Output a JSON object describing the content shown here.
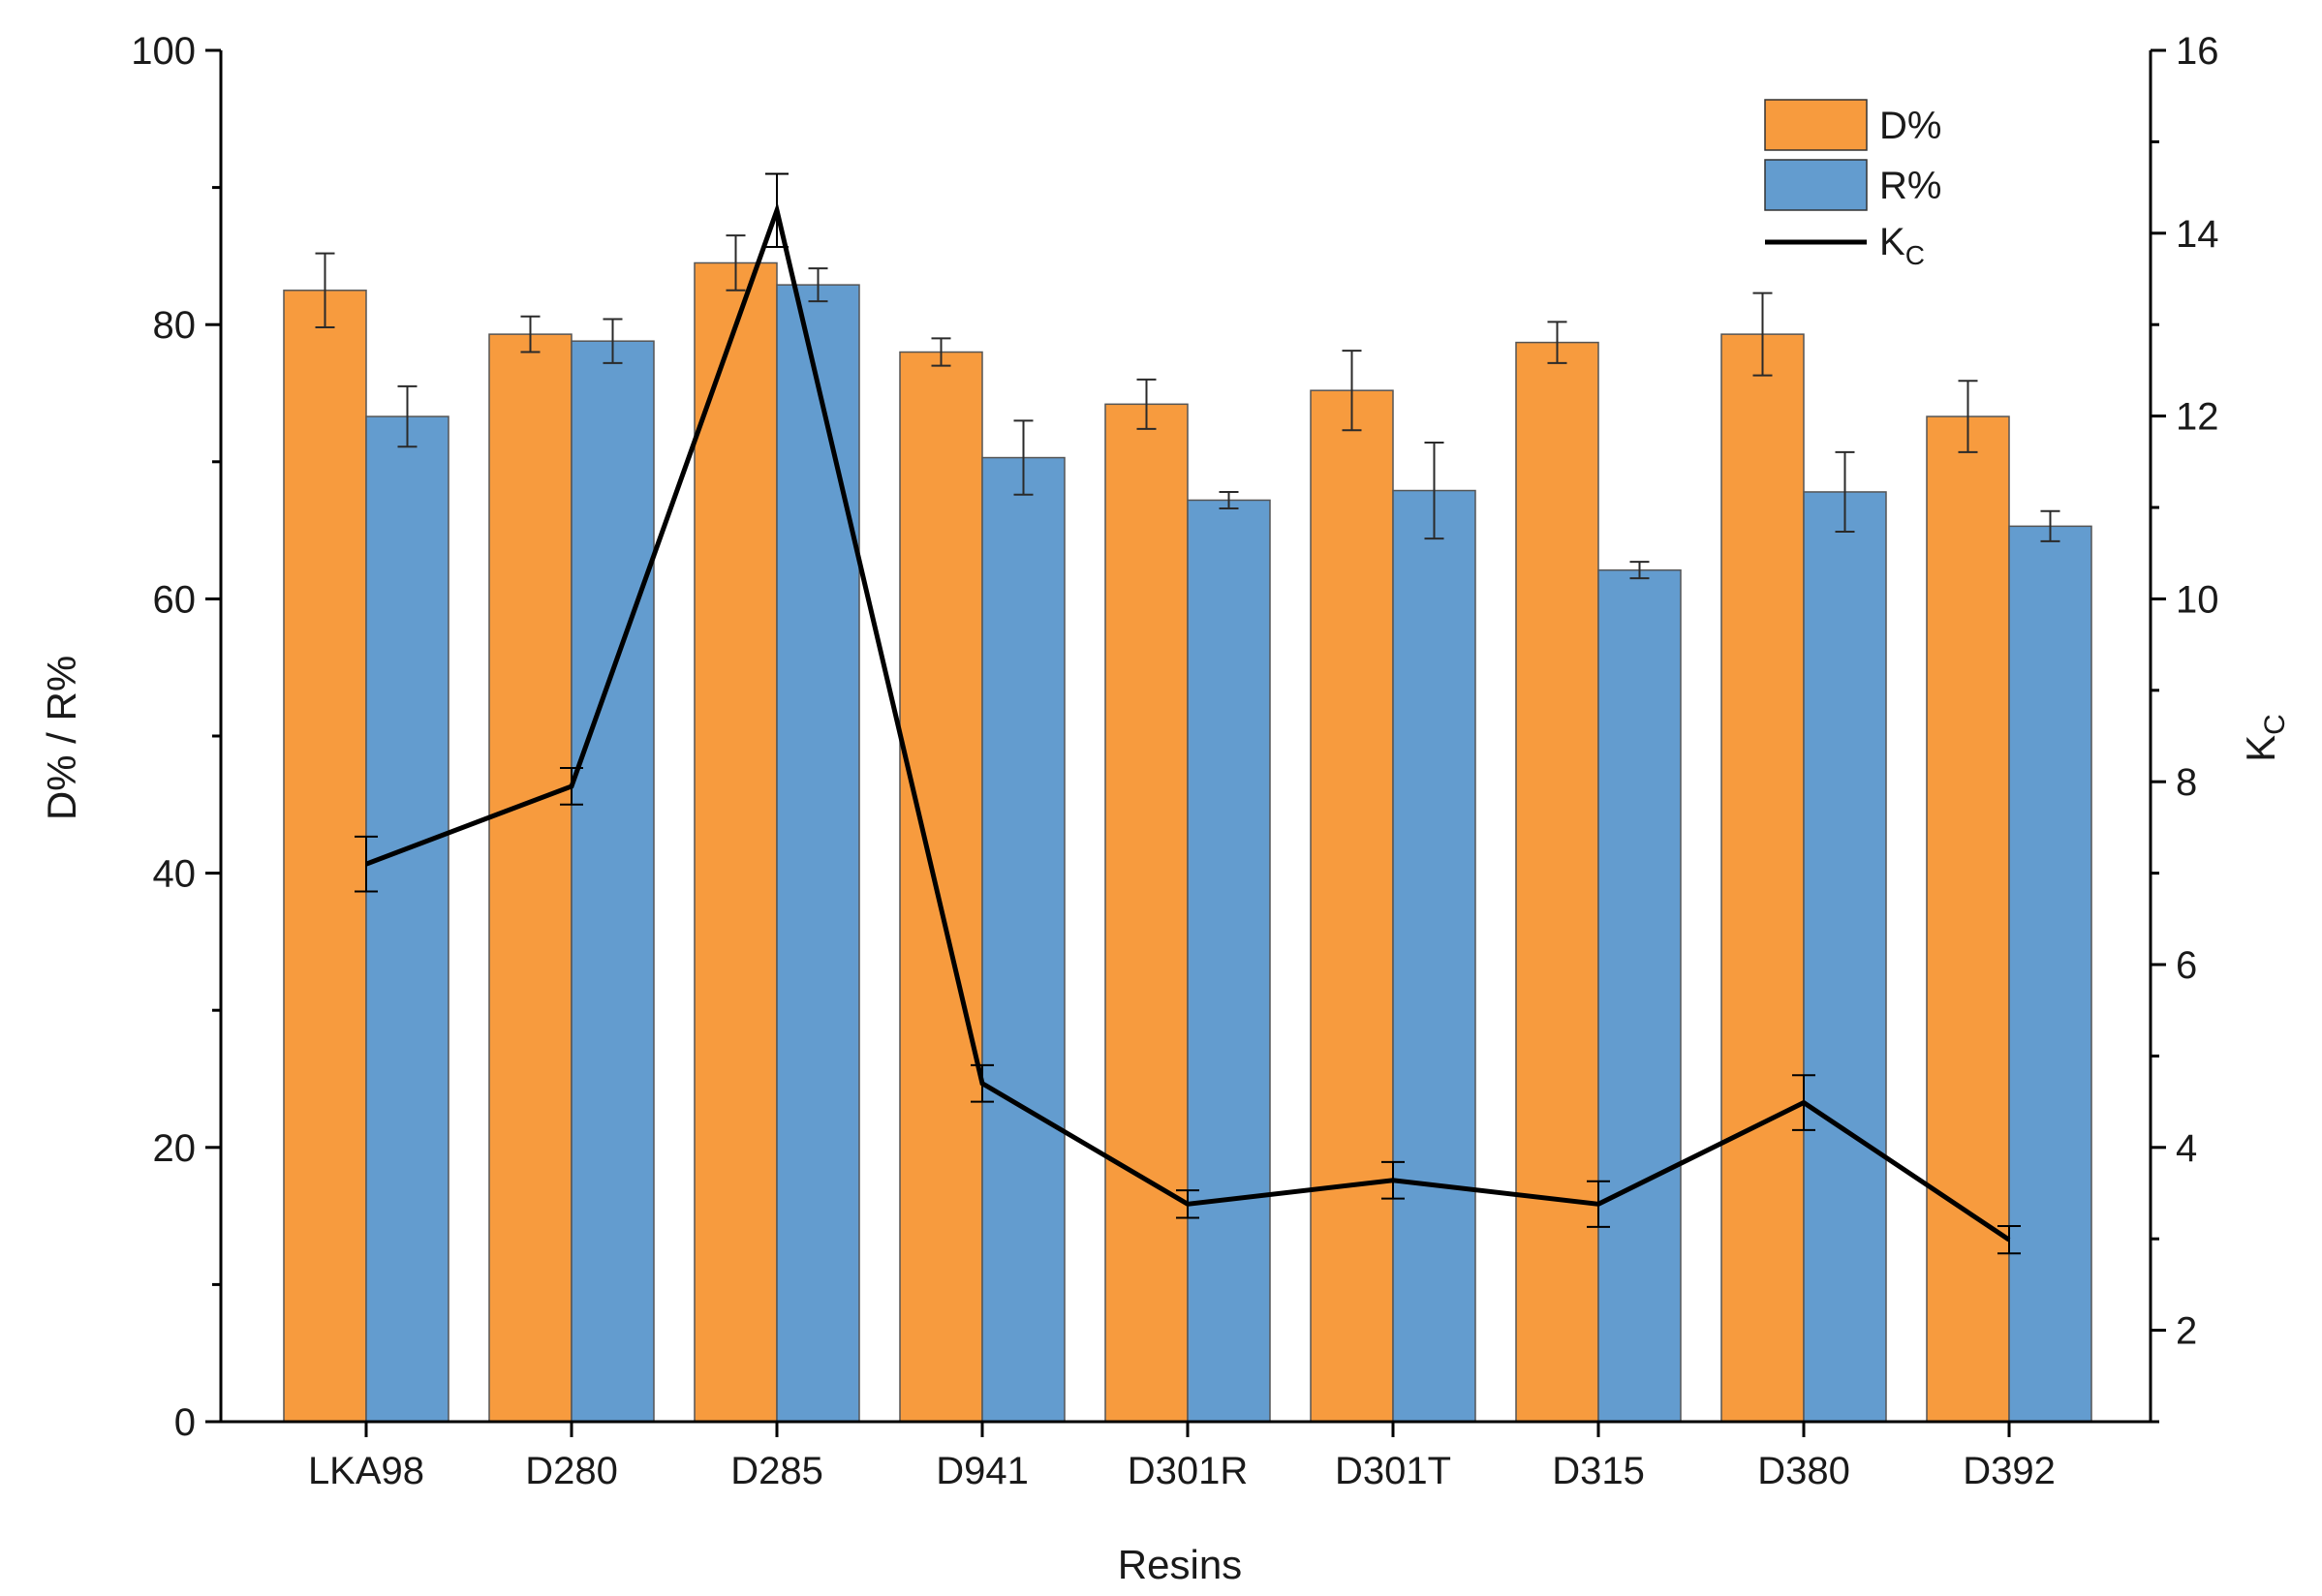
{
  "chart_data": {
    "type": "bar",
    "title": "",
    "xlabel": "Resins",
    "ylabel": "D% / R%",
    "y2label_main": "K",
    "y2label_sub": "C",
    "categories": [
      "LKA98",
      "D280",
      "D285",
      "D941",
      "D301R",
      "D301T",
      "D315",
      "D380",
      "D392"
    ],
    "ylim": [
      0,
      100
    ],
    "y_ticks": [
      0,
      20,
      40,
      60,
      80,
      100
    ],
    "y2lim": [
      1,
      16
    ],
    "y2_ticks": [
      2,
      4,
      6,
      8,
      10,
      12,
      14,
      16
    ],
    "legend_position": "top-right",
    "series": [
      {
        "name": "D%",
        "kind": "bar",
        "axis": "left",
        "color": "#F79B3E",
        "values": [
          82.5,
          79.3,
          84.5,
          78.0,
          74.2,
          75.2,
          78.7,
          79.3,
          73.3
        ],
        "errors": [
          2.7,
          1.3,
          2.0,
          1.0,
          1.8,
          2.9,
          1.5,
          3.0,
          2.6
        ]
      },
      {
        "name": "R%",
        "kind": "bar",
        "axis": "left",
        "color": "#639CCF",
        "values": [
          73.3,
          78.8,
          82.9,
          70.3,
          67.2,
          67.9,
          62.1,
          67.8,
          65.3
        ],
        "errors": [
          2.2,
          1.6,
          1.2,
          2.7,
          0.6,
          3.5,
          0.6,
          2.9,
          1.1
        ]
      },
      {
        "name": "K",
        "name_sub": "C",
        "kind": "line",
        "axis": "right",
        "color": "#000000",
        "values": [
          7.1,
          7.95,
          14.25,
          4.7,
          3.38,
          3.64,
          3.38,
          4.49,
          2.99
        ],
        "errors": [
          0.3,
          0.2,
          0.4,
          0.2,
          0.15,
          0.2,
          0.25,
          0.3,
          0.15
        ]
      }
    ]
  }
}
